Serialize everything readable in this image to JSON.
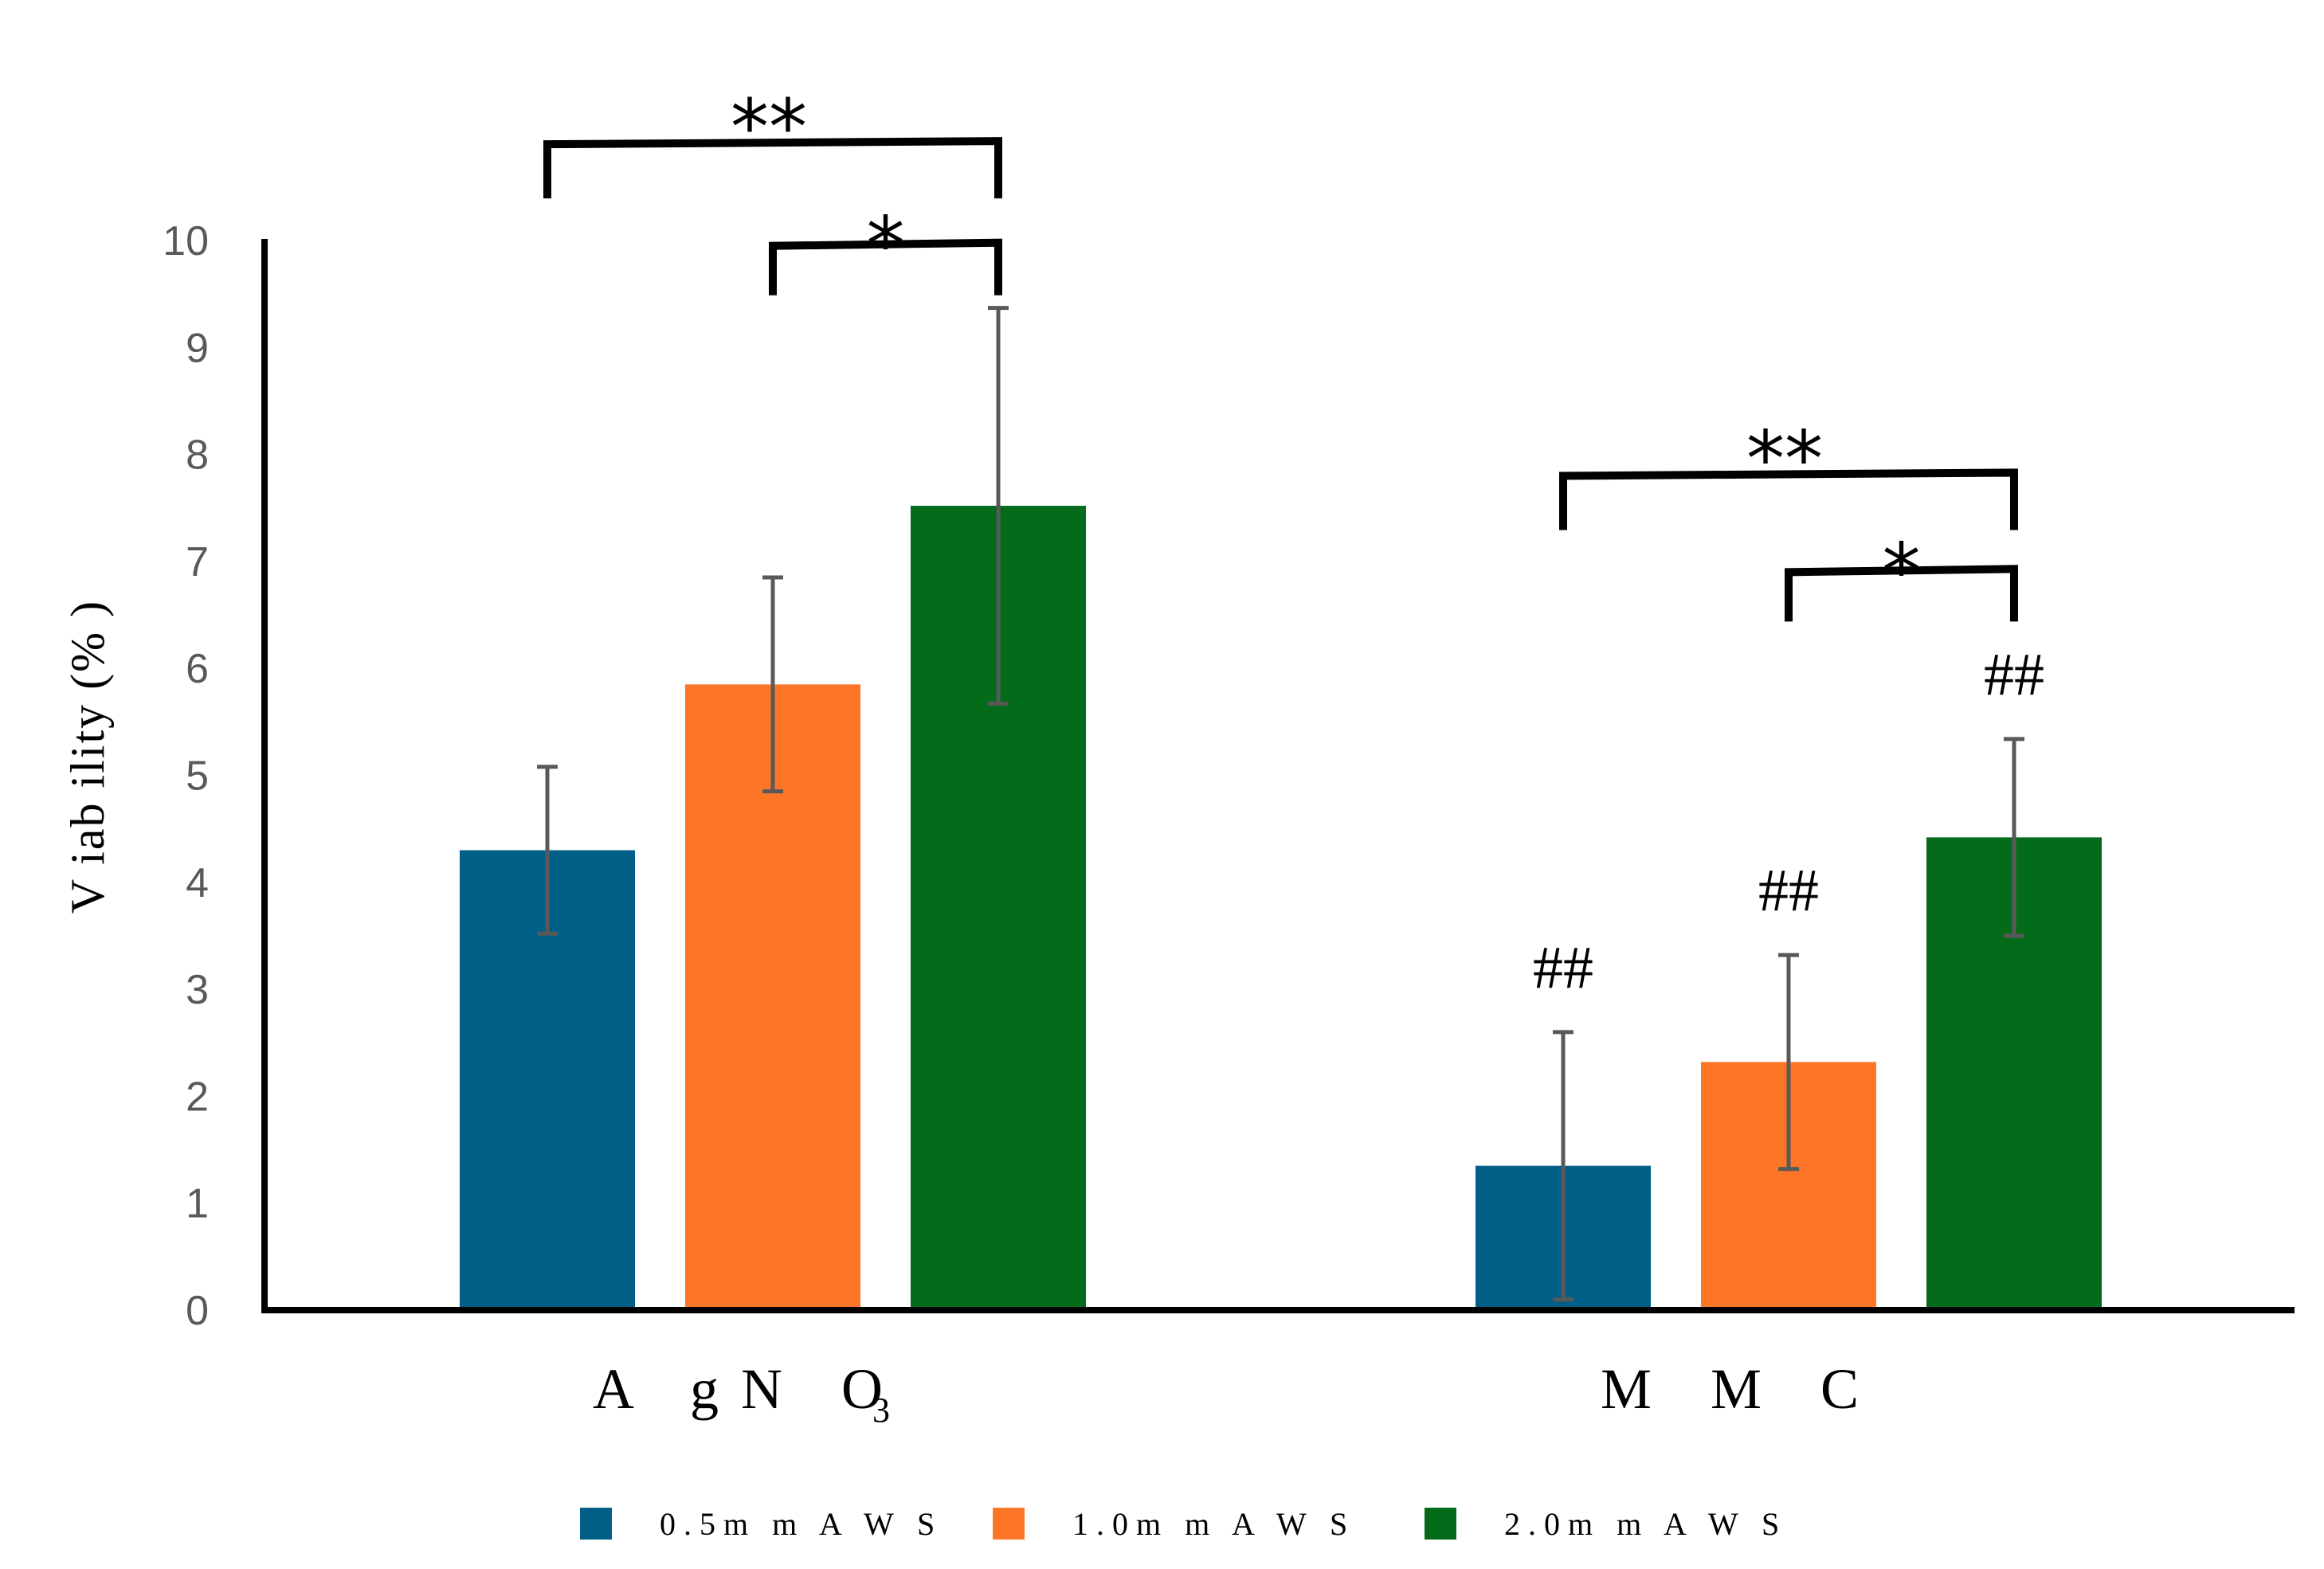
{
  "chart_data": {
    "type": "bar",
    "title": "",
    "xlabel": "",
    "ylabel": "V iab ility (% )",
    "ylim": [
      0,
      10
    ],
    "yticks": [
      "0",
      "1",
      "2",
      "3",
      "4",
      "5",
      "6",
      "7",
      "8",
      "9",
      "10"
    ],
    "categories": [
      {
        "main": "A gN O",
        "sub": "3"
      },
      {
        "main": "M M C",
        "sub": ""
      }
    ],
    "series": [
      {
        "name": "0.5m m  A W S",
        "color": "#005f86",
        "values": [
          4.3,
          1.35
        ],
        "errors": [
          0.78,
          1.25
        ]
      },
      {
        "name": "1.0m m  A W S",
        "color": "#fd7628",
        "values": [
          5.85,
          2.32
        ],
        "errors": [
          1.0,
          1.0
        ]
      },
      {
        "name": "2.0m m  A W S",
        "color": "#036b19",
        "values": [
          7.52,
          4.42
        ],
        "errors": [
          1.85,
          0.92
        ]
      }
    ],
    "annotations": {
      "brackets": [
        {
          "category": 0,
          "from_series": 0,
          "to_series": 2,
          "label": "**",
          "level": 10.9
        },
        {
          "category": 0,
          "from_series": 1,
          "to_series": 2,
          "label": "*",
          "level": 9.95
        },
        {
          "category": 1,
          "from_series": 0,
          "to_series": 2,
          "label": "**",
          "level": 7.8
        },
        {
          "category": 1,
          "from_series": 1,
          "to_series": 2,
          "label": "*",
          "level": 6.9
        }
      ],
      "markers": [
        {
          "category": 1,
          "series": 0,
          "label": "##"
        },
        {
          "category": 1,
          "series": 1,
          "label": "##"
        },
        {
          "category": 1,
          "series": 2,
          "label": "##"
        }
      ]
    },
    "legend_position": "bottom",
    "grid": false
  }
}
